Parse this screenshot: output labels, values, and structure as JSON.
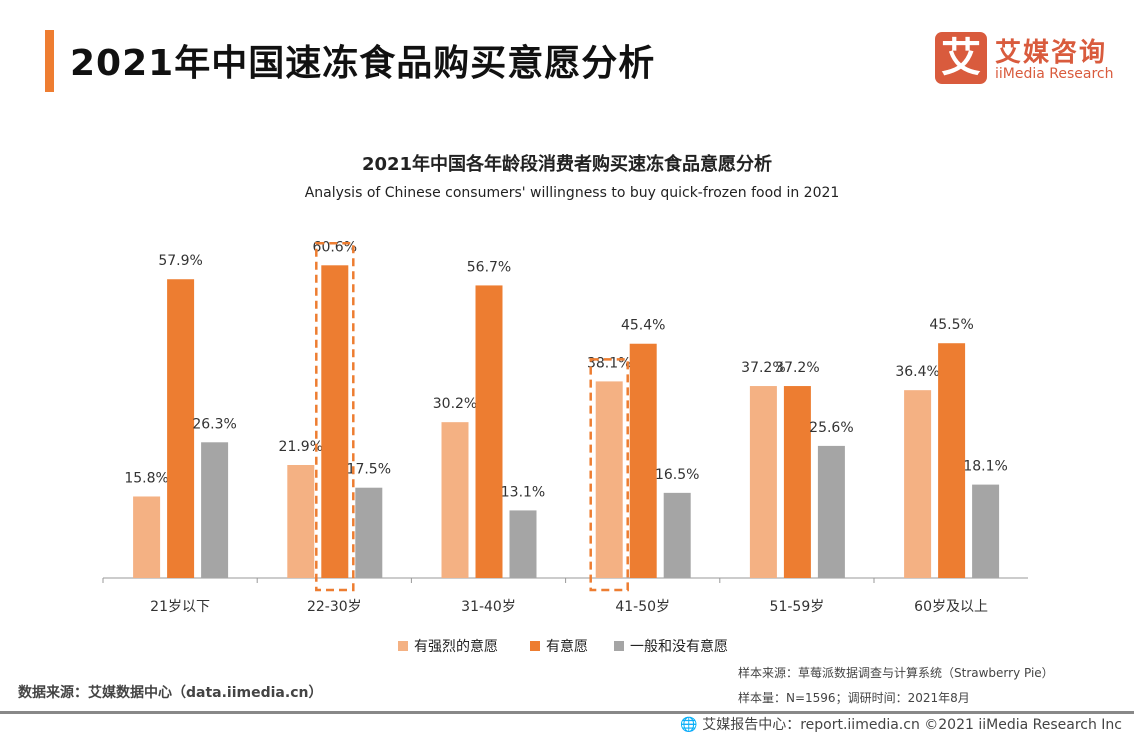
{
  "header": {
    "title": "2021年中国速冻食品购买意愿分析",
    "logo_mark": "艾",
    "logo_cn": "艾媒咨询",
    "logo_en": "iiMedia Research"
  },
  "colors": {
    "accent": "#ee7d31",
    "strong": "#f4b183",
    "willing": "#ed7d31",
    "none": "#a5a5a5"
  },
  "chart_data": {
    "type": "bar",
    "title": "2021年中国各年龄段消费者购买速冻食品意愿分析",
    "subtitle": "Analysis of Chinese consumers' willingness to buy quick-frozen food in 2021",
    "categories": [
      "21岁以下",
      "22-30岁",
      "31-40岁",
      "41-50岁",
      "51-59岁",
      "60岁及以上"
    ],
    "series": [
      {
        "name": "有强烈的意愿",
        "color": "#f4b183",
        "values": [
          15.8,
          21.9,
          30.2,
          38.1,
          37.2,
          36.4
        ]
      },
      {
        "name": "有意愿",
        "color": "#ed7d31",
        "values": [
          57.9,
          60.6,
          56.7,
          45.4,
          37.2,
          45.5
        ]
      },
      {
        "name": "一般和没有意愿",
        "color": "#a5a5a5",
        "values": [
          26.3,
          17.5,
          13.1,
          16.5,
          25.6,
          18.1
        ]
      }
    ],
    "unit": "%",
    "ylim": [
      0,
      65
    ],
    "grid": false,
    "legend": "bottom",
    "highlights": [
      {
        "category": "22-30岁",
        "series": "有意愿"
      },
      {
        "category": "41-50岁",
        "series": "有强烈的意愿"
      }
    ]
  },
  "footer": {
    "source": "数据来源：艾媒数据中心（data.iimedia.cn）",
    "sample_source": "样本来源：草莓派数据调查与计算系统（Strawberry Pie）",
    "sample_size": "样本量：N=1596；调研时间：2021年8月",
    "copyright": "艾媒报告中心：report.iimedia.cn   ©2021  iiMedia Research  Inc"
  }
}
